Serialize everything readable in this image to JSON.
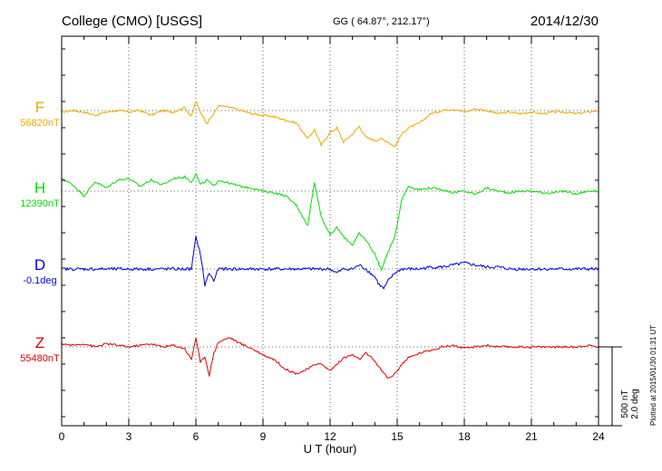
{
  "header": {
    "station": "College (CMO)  [USGS]",
    "coords": "GG ( 64.87°, 212.17°)",
    "date": "2014/12/30"
  },
  "footer": {
    "plotted": "Plotted at 2015/01/30 01:31  UT"
  },
  "scale": {
    "nt": "500 nT",
    "deg": "2.0 deg"
  },
  "chart_data": {
    "type": "line",
    "title": "College (CMO)  [USGS]",
    "xlabel": "U T (hour)",
    "xlim": [
      0,
      24
    ],
    "xticks": [
      0,
      3,
      6,
      9,
      12,
      15,
      18,
      21,
      24
    ],
    "xtick_labels": [
      "0",
      "3",
      "6",
      "9",
      "12",
      "15",
      "18",
      "21",
      "24"
    ],
    "grid": true,
    "scale_bar": {
      "nT": 500,
      "deg": 2.0
    },
    "series": [
      {
        "name": "F",
        "baseline_label": "56820nT",
        "unit": "nT",
        "color": "#f0a800",
        "x": [
          0,
          0.5,
          1,
          1.5,
          2,
          2.5,
          3,
          3.5,
          4,
          4.5,
          5,
          5.5,
          5.8,
          6,
          6.2,
          6.5,
          6.8,
          7,
          7.5,
          8,
          8.5,
          9,
          9.5,
          10,
          10.5,
          11,
          11.3,
          11.6,
          12,
          12.3,
          12.6,
          13,
          13.3,
          13.6,
          14,
          14.3,
          14.6,
          14.9,
          15.2,
          15.5,
          16,
          16.5,
          17,
          17.5,
          18,
          18.5,
          19,
          19.5,
          20,
          20.5,
          21,
          21.5,
          22,
          22.5,
          23,
          23.5,
          24
        ],
        "values": [
          -10,
          0,
          -10,
          -30,
          -10,
          0,
          -10,
          0,
          -30,
          0,
          -10,
          20,
          -40,
          60,
          -10,
          -80,
          -20,
          30,
          20,
          0,
          -20,
          -30,
          -40,
          -60,
          -80,
          -180,
          -120,
          -220,
          -140,
          -110,
          -200,
          -150,
          -100,
          -170,
          -190,
          -180,
          -200,
          -230,
          -150,
          -110,
          -80,
          -20,
          0,
          10,
          -10,
          10,
          0,
          -20,
          -10,
          -20,
          -10,
          -20,
          -10,
          -10,
          -20,
          -10,
          0
        ]
      },
      {
        "name": "H",
        "baseline_label": "12390nT",
        "unit": "nT",
        "color": "#00e000",
        "x": [
          0,
          0.5,
          1,
          1.5,
          2,
          2.5,
          3,
          3.5,
          4,
          4.5,
          5,
          5.5,
          5.8,
          6,
          6.2,
          6.5,
          6.8,
          7,
          7.5,
          8,
          8.5,
          9,
          9.5,
          10,
          10.5,
          11,
          11.3,
          11.6,
          12,
          12.3,
          12.6,
          13,
          13.3,
          13.6,
          14,
          14.3,
          14.6,
          14.9,
          15.2,
          15.5,
          16,
          16.5,
          17,
          17.5,
          18,
          18.5,
          19,
          19.5,
          20,
          20.5,
          21,
          21.5,
          22,
          22.5,
          23,
          23.5,
          24
        ],
        "values": [
          80,
          40,
          -30,
          60,
          20,
          70,
          80,
          30,
          70,
          40,
          80,
          90,
          60,
          110,
          40,
          70,
          30,
          70,
          50,
          30,
          20,
          0,
          -10,
          -30,
          -90,
          -220,
          60,
          -160,
          -280,
          -230,
          -290,
          -340,
          -270,
          -310,
          -400,
          -500,
          -380,
          -290,
          -50,
          30,
          10,
          20,
          10,
          -10,
          0,
          -20,
          20,
          0,
          -10,
          0,
          0,
          -10,
          -10,
          0,
          -20,
          0,
          0
        ]
      },
      {
        "name": "D",
        "baseline_label": "-0.1deg",
        "unit": "deg",
        "color": "#0000e0",
        "x": [
          0,
          0.5,
          1,
          1.5,
          2,
          2.5,
          3,
          3.5,
          4,
          4.5,
          5,
          5.5,
          5.8,
          6,
          6.2,
          6.4,
          6.6,
          6.8,
          7,
          7.5,
          8,
          8.5,
          9,
          9.5,
          10,
          10.5,
          11,
          11.5,
          12,
          12.3,
          12.6,
          13,
          13.3,
          13.6,
          14,
          14.2,
          14.4,
          14.6,
          14.9,
          15.2,
          15.5,
          16,
          16.5,
          17,
          17.5,
          18,
          18.5,
          19,
          19.5,
          20,
          20.5,
          21,
          21.5,
          22,
          22.5,
          23,
          23.5,
          24
        ],
        "values": [
          0,
          0,
          0,
          0,
          0,
          0,
          0,
          0,
          0,
          0,
          0,
          0,
          0,
          0.8,
          0.4,
          -0.4,
          -0.1,
          -0.3,
          0,
          0,
          0,
          0,
          0,
          0,
          0,
          0,
          0,
          0,
          0,
          -0.1,
          0,
          0,
          0.1,
          0,
          -0.2,
          -0.4,
          -0.5,
          -0.3,
          -0.1,
          0,
          0,
          0,
          0.05,
          0.05,
          0.1,
          0.15,
          0.1,
          0.05,
          0.05,
          0,
          0,
          0,
          0,
          0,
          0,
          0,
          0,
          0
        ]
      },
      {
        "name": "Z",
        "baseline_label": "55480nT",
        "unit": "nT",
        "color": "#e00000",
        "x": [
          0,
          0.5,
          1,
          1.5,
          2,
          2.5,
          3,
          3.5,
          4,
          4.5,
          5,
          5.5,
          5.8,
          6,
          6.2,
          6.4,
          6.6,
          6.8,
          7,
          7.5,
          8,
          8.5,
          9,
          9.5,
          10,
          10.5,
          11,
          11.5,
          12,
          12.3,
          12.6,
          13,
          13.3,
          13.6,
          14,
          14.3,
          14.6,
          14.9,
          15.2,
          15.5,
          16,
          16.5,
          17,
          17.5,
          18,
          18.5,
          19,
          19.5,
          20,
          20.5,
          21,
          21.5,
          22,
          22.5,
          23,
          23.5,
          24
        ],
        "values": [
          20,
          10,
          20,
          0,
          20,
          10,
          0,
          10,
          20,
          0,
          10,
          -10,
          -80,
          60,
          -100,
          -60,
          -180,
          -40,
          30,
          60,
          20,
          -10,
          -50,
          -80,
          -140,
          -170,
          -140,
          -100,
          -150,
          -110,
          -70,
          -50,
          -80,
          -40,
          -90,
          -150,
          -200,
          -170,
          -110,
          -70,
          -40,
          -20,
          0,
          10,
          -10,
          0,
          10,
          0,
          0,
          0,
          0,
          0,
          0,
          0,
          0,
          10,
          0
        ]
      }
    ]
  }
}
